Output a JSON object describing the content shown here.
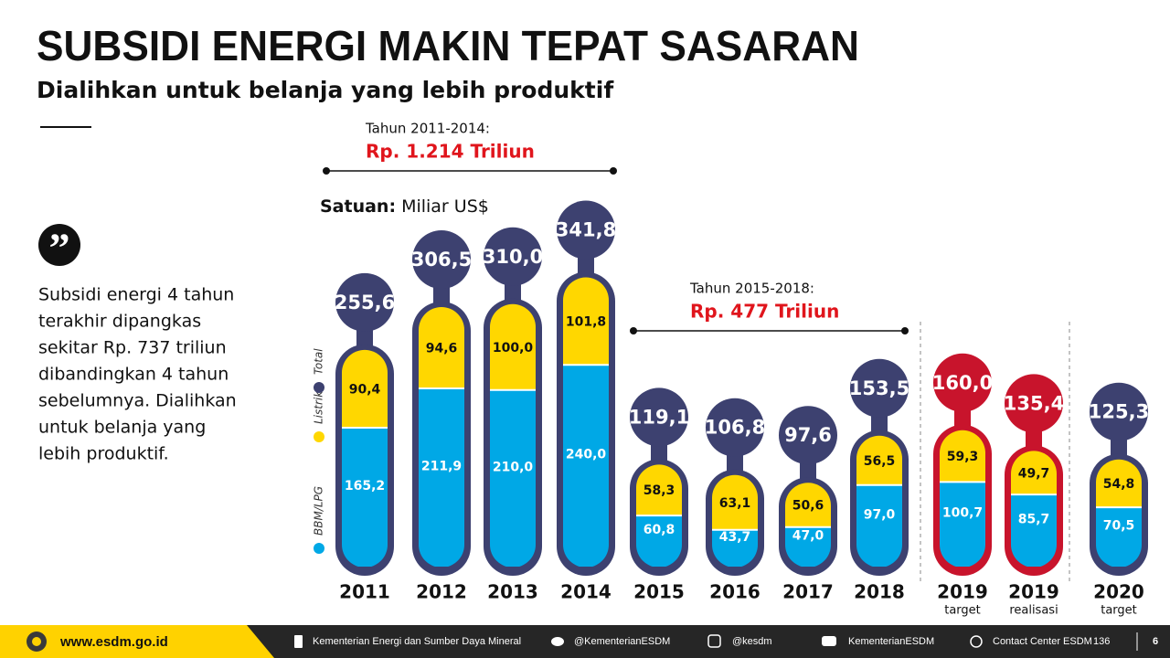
{
  "header": {
    "title": "SUBSIDI ENERGI MAKIN TEPAT SASARAN",
    "subtitle": "Dialihkan untuk belanja yang lebih produktif"
  },
  "quote": {
    "mark": "”",
    "lines": [
      "Subsidi energi 4 tahun",
      "terakhir dipangkas",
      "sekitar Rp. 737 triliun",
      "dibandingkan 4 tahun",
      "sebelumnya. Dialihkan",
      "untuk belanja yang",
      "lebih produktif."
    ]
  },
  "chart_data": {
    "type": "bar",
    "stacked": true,
    "unit_label": "Satuan:",
    "unit": "Miliar US$",
    "periods": [
      {
        "label": "Tahun 2011-2014:",
        "amount": "Rp. 1.214 Triliun"
      },
      {
        "label": "Tahun 2015-2018:",
        "amount": "Rp. 477 Triliun"
      }
    ],
    "categories": [
      "2011",
      "2012",
      "2013",
      "2014",
      "2015",
      "2016",
      "2017",
      "2018",
      "2019",
      "2019",
      "2020"
    ],
    "category_notes": [
      null,
      null,
      null,
      null,
      null,
      null,
      null,
      null,
      "target",
      "realisasi",
      "target"
    ],
    "series": [
      {
        "name": "BBM/LPG",
        "color": "#00a8e6",
        "values": [
          165.2,
          211.9,
          210.0,
          240.0,
          60.8,
          43.7,
          47.0,
          97.0,
          100.7,
          85.7,
          70.5
        ],
        "value_labels": [
          "165,2",
          "211,9",
          "210,0",
          "240,0",
          "60,8",
          "43,7",
          "47,0",
          "97,0",
          "100,7",
          "85,7",
          "70,5"
        ]
      },
      {
        "name": "Listrik",
        "color": "#ffd700",
        "values": [
          90.4,
          94.6,
          100.0,
          101.8,
          58.3,
          63.1,
          50.6,
          56.5,
          59.3,
          49.7,
          54.8
        ],
        "value_labels": [
          "90,4",
          "94,6",
          "100,0",
          "101,8",
          "58,3",
          "63,1",
          "50,6",
          "56,5",
          "59,3",
          "49,7",
          "54,8"
        ]
      }
    ],
    "totals": {
      "name": "Total",
      "color": "#3d4170",
      "colors": [
        "#3d4170",
        "#3d4170",
        "#3d4170",
        "#3d4170",
        "#3d4170",
        "#3d4170",
        "#3d4170",
        "#3d4170",
        "#c8142c",
        "#c8142c",
        "#3d4170"
      ],
      "values": [
        255.6,
        306.5,
        310.0,
        341.8,
        119.1,
        106.8,
        97.6,
        153.5,
        160.0,
        135.4,
        125.3
      ],
      "value_labels": [
        "255,6",
        "306,5",
        "310,0",
        "341,8",
        "119,1",
        "106,8",
        "97,6",
        "153,5",
        "160,0",
        "135,4",
        "125,3"
      ]
    }
  },
  "footer": {
    "url": "www.esdm.go.id",
    "facebook": "Kementerian Energi dan Sumber Daya Mineral",
    "twitter": "@KementerianESDM",
    "instagram": "@kesdm",
    "youtube": "KementerianESDM",
    "contact": "Contact Center ESDM",
    "contact_number": "136",
    "page": "6"
  }
}
